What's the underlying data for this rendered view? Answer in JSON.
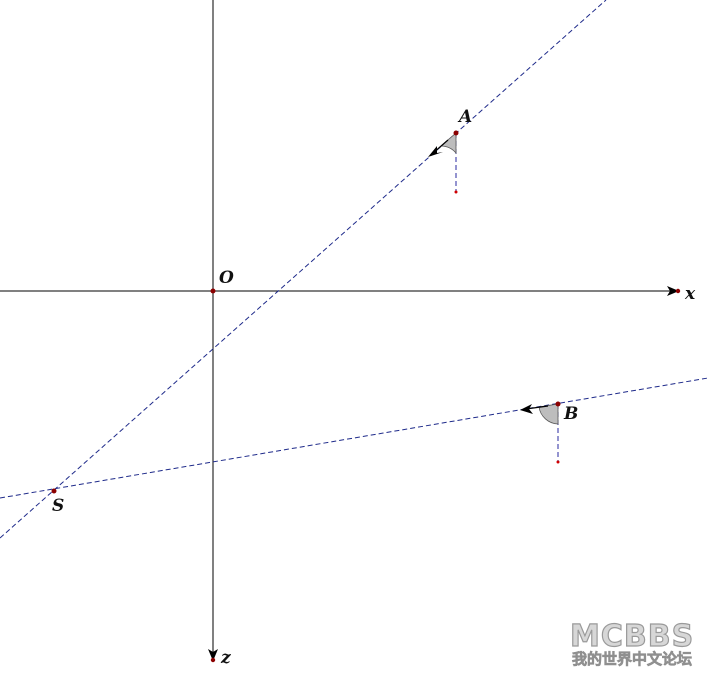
{
  "diagram": {
    "axes": {
      "x_label": "x",
      "z_label": "z",
      "origin_label": "O"
    },
    "points": {
      "A": {
        "label": "A"
      },
      "B": {
        "label": "B"
      },
      "S": {
        "label": "S"
      }
    },
    "colors": {
      "axis": "#000000",
      "dashed_line": "#1e2a8a",
      "drop_line": "#2a2aa0",
      "point": "#8b0000",
      "angle_fill": "#bdbdbd",
      "arrow": "#000000"
    }
  },
  "watermark": {
    "logo_text": "MCBBS",
    "subtitle": "我的世界中文论坛"
  }
}
